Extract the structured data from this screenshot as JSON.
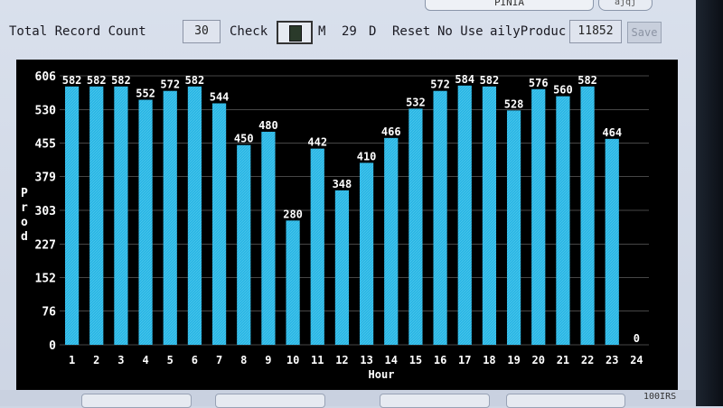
{
  "header": {
    "tab_label": "PINIA",
    "corner_button_label": "ajqj"
  },
  "toolbar": {
    "total_record_label": "Total Record Count",
    "total_record_value": "30",
    "check_label": "Check",
    "month_label": "M",
    "day_value": "29",
    "day_label": "D",
    "reset_label": "Reset",
    "no_use_label": "No Use",
    "daily_product_label": "ailyProduc",
    "daily_product_value": "11852",
    "save_label": "Save"
  },
  "footer": {
    "corner_text": "100IRS"
  },
  "colors": {
    "bar": "#29b6e4",
    "chart_background": "#000000",
    "axis_text": "#ffffff",
    "grid": "#ffffff"
  },
  "chart_data": {
    "type": "bar",
    "categories": [
      "1",
      "2",
      "3",
      "4",
      "5",
      "6",
      "7",
      "8",
      "9",
      "10",
      "11",
      "12",
      "13",
      "14",
      "15",
      "16",
      "17",
      "18",
      "19",
      "20",
      "21",
      "22",
      "23",
      "24"
    ],
    "values": [
      582,
      582,
      582,
      552,
      572,
      582,
      544,
      450,
      480,
      280,
      442,
      348,
      410,
      466,
      532,
      572,
      584,
      582,
      528,
      576,
      560,
      582,
      464,
      0
    ],
    "data_labels": [
      "582",
      "582",
      "582",
      "552",
      "572",
      "582",
      "544",
      "450",
      "480",
      "280",
      "442",
      "348",
      "410",
      "466",
      "532",
      "572",
      "584",
      "582",
      "528",
      "576",
      "560",
      "582",
      "464",
      "0"
    ],
    "xlabel": "Hour",
    "ylabel": "Prod",
    "ylim": [
      0,
      606
    ],
    "yticks": [
      "0",
      "76",
      "152",
      "227",
      "303",
      "379",
      "455",
      "530",
      "606"
    ],
    "grid": true
  }
}
